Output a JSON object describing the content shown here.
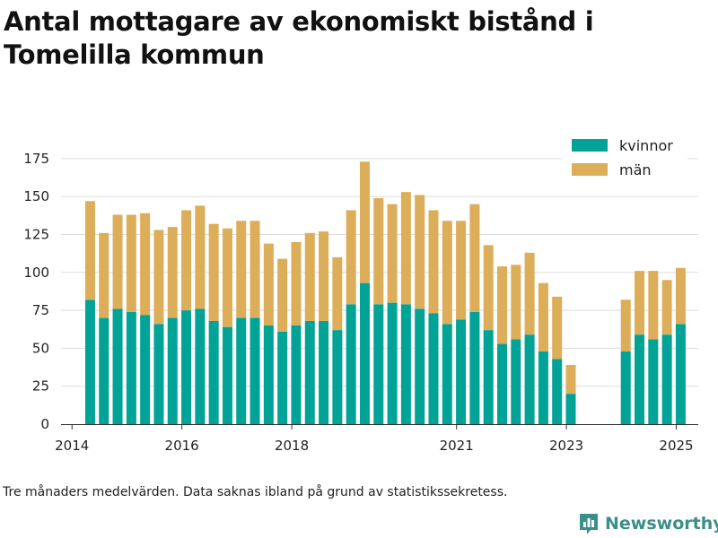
{
  "title": "Antal mottagare av ekonomiskt bistånd i Tomelilla kommun",
  "footnote": "Tre månaders medelvärden. Data saknas ibland på grund av statistikssekretess.",
  "brand": {
    "name": "Newsworthy",
    "icon": "bar-chart-logo-icon"
  },
  "colors": {
    "kvinnor": "#00a396",
    "man": "#dcae5a",
    "grid": "#dddddd",
    "axis": "#333333"
  },
  "chart_data": {
    "type": "bar",
    "stacked": true,
    "title": "Antal mottagare av ekonomiskt bistånd i Tomelilla kommun",
    "xlabel": "",
    "ylabel": "",
    "ylim": [
      0,
      185
    ],
    "yticks": [
      0,
      25,
      50,
      75,
      100,
      125,
      150,
      175
    ],
    "xlim": [
      2013.8,
      2025.4
    ],
    "xticks": [
      {
        "value": 2014.0,
        "label": "2014"
      },
      {
        "value": 2016.0,
        "label": "2016"
      },
      {
        "value": 2018.0,
        "label": "2018"
      },
      {
        "value": 2021.0,
        "label": "2021"
      },
      {
        "value": 2023.0,
        "label": "2023"
      },
      {
        "value": 2025.0,
        "label": "2025"
      }
    ],
    "grid": true,
    "legend": "top-right",
    "x": [
      2014.33,
      2014.58,
      2014.83,
      2015.08,
      2015.33,
      2015.58,
      2015.83,
      2016.08,
      2016.33,
      2016.58,
      2016.83,
      2017.08,
      2017.33,
      2017.58,
      2017.83,
      2018.08,
      2018.33,
      2018.58,
      2018.83,
      2019.08,
      2019.33,
      2019.58,
      2019.83,
      2020.08,
      2020.33,
      2020.58,
      2020.83,
      2021.08,
      2021.33,
      2021.58,
      2021.83,
      2022.08,
      2022.33,
      2022.58,
      2022.83,
      2023.08,
      2024.08,
      2024.33,
      2024.58,
      2024.83,
      2025.08
    ],
    "series": [
      {
        "name": "kvinnor",
        "values": [
          82,
          70,
          76,
          74,
          72,
          66,
          70,
          75,
          76,
          68,
          64,
          70,
          70,
          65,
          61,
          65,
          68,
          68,
          62,
          79,
          93,
          79,
          80,
          79,
          76,
          73,
          66,
          69,
          74,
          62,
          53,
          56,
          59,
          48,
          43,
          20,
          48,
          59,
          56,
          59,
          66
        ]
      },
      {
        "name": "män",
        "values": [
          65,
          56,
          62,
          64,
          67,
          62,
          60,
          66,
          68,
          64,
          65,
          64,
          64,
          54,
          48,
          55,
          58,
          59,
          48,
          62,
          80,
          70,
          65,
          74,
          75,
          68,
          68,
          65,
          71,
          56,
          51,
          49,
          54,
          45,
          41,
          19,
          34,
          42,
          45,
          36,
          37
        ]
      }
    ]
  }
}
